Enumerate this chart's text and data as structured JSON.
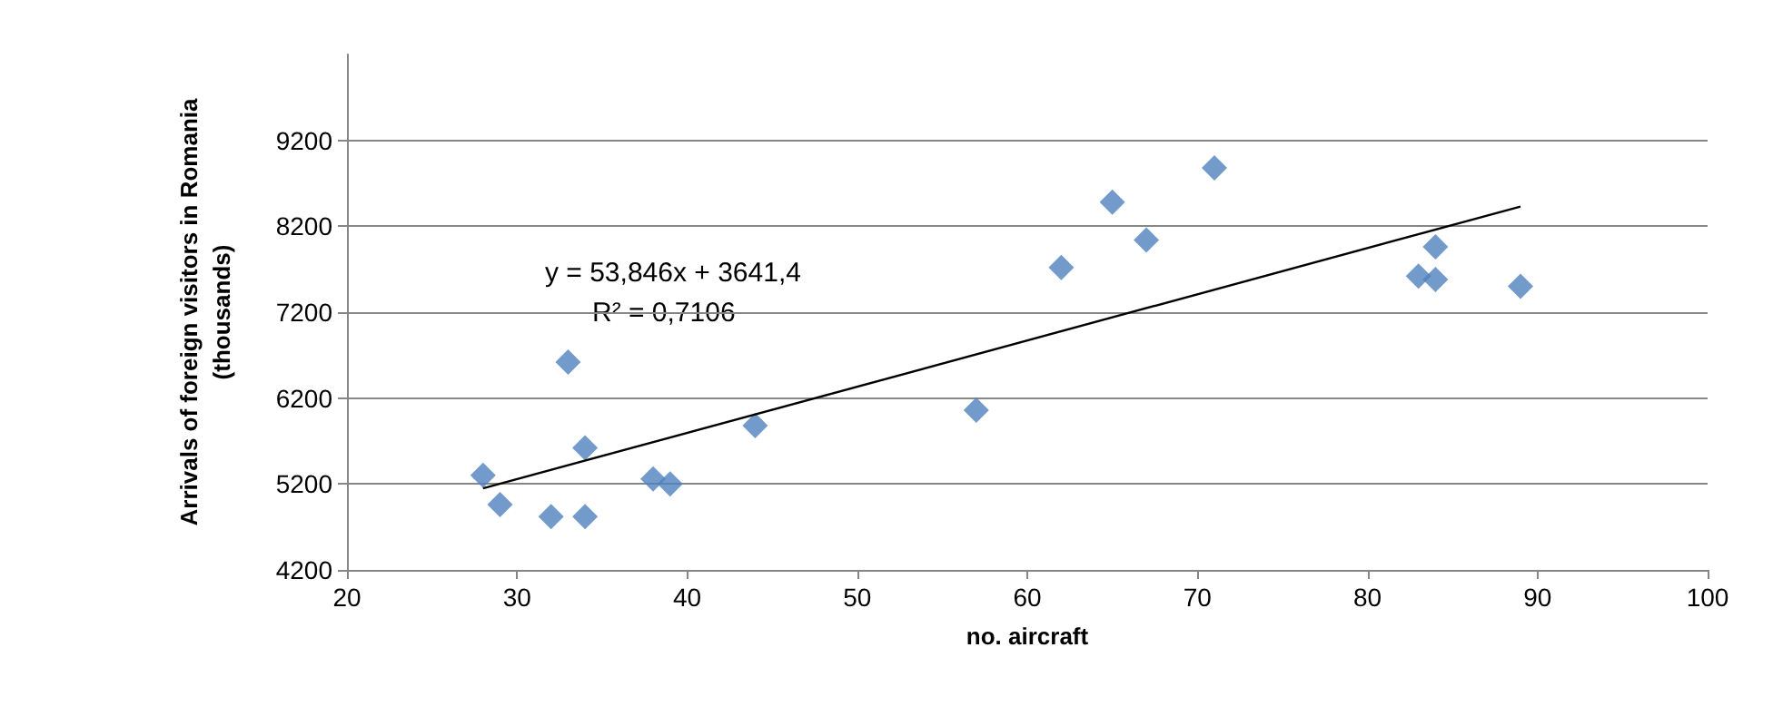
{
  "chart_data": {
    "type": "scatter",
    "xlabel": "no. aircraft",
    "ylabel": "Arrivals of foreign visitors in Romania\n(thousands)",
    "x": [
      28,
      29,
      33,
      32,
      34,
      34,
      38,
      39,
      44,
      57,
      62,
      65,
      67,
      71,
      83,
      84,
      84,
      89
    ],
    "series": [
      {
        "color": "#4f81bd",
        "marker": "diamond",
        "values": [
          5300,
          4960,
          6620,
          4820,
          4820,
          5620,
          5260,
          5200,
          5880,
          6060,
          7720,
          8480,
          8040,
          8880,
          7620,
          7960,
          7580,
          7500
        ]
      },
      {
        "type": "line",
        "color": "#000000",
        "x": [
          28,
          89
        ],
        "values": [
          5150,
          8430
        ],
        "marker": "none",
        "line_style": "solid"
      }
    ],
    "annotations": [
      "y = 53,846x + 3641,4",
      "R² = 0,7106"
    ],
    "xlim": [
      20,
      100
    ],
    "xticks": [
      20,
      30,
      40,
      50,
      60,
      70,
      80,
      90,
      100
    ],
    "ylim": [
      4200,
      10200
    ],
    "yticks": [
      4200,
      5200,
      6200,
      7200,
      8200,
      9200
    ],
    "grid": "y"
  }
}
